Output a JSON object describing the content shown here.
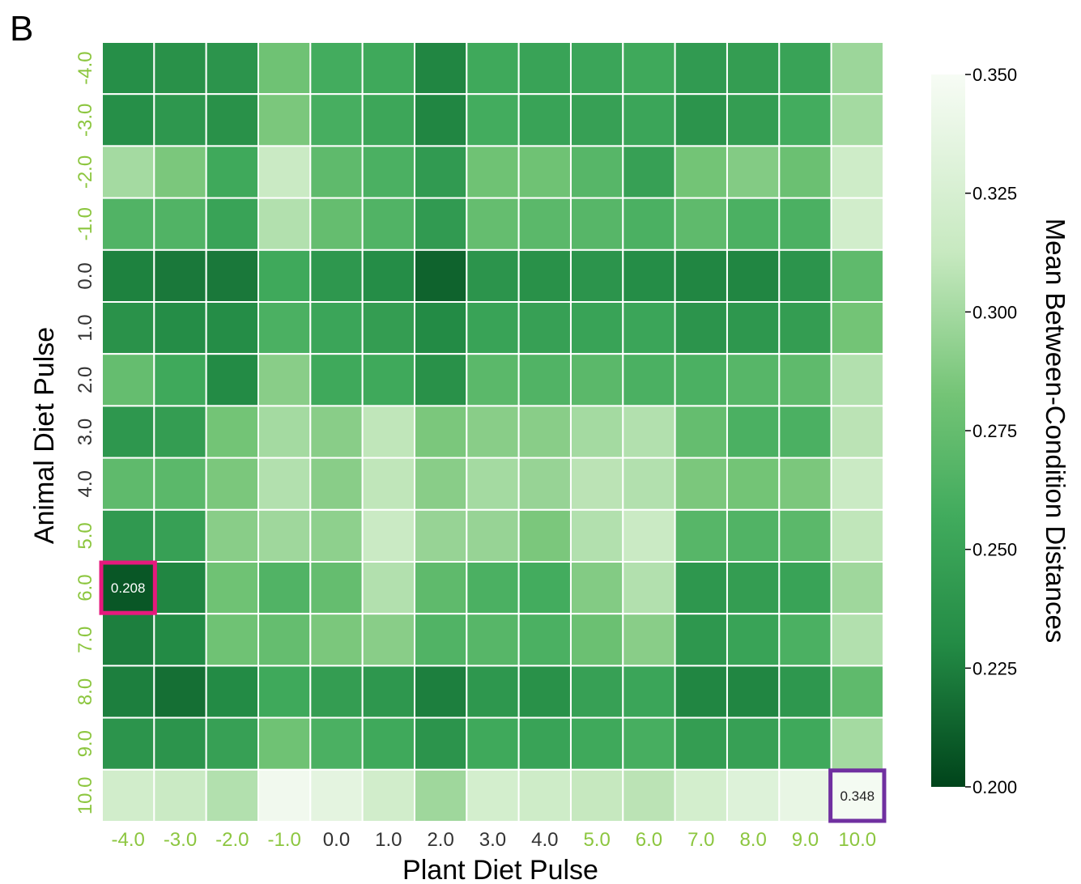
{
  "panel_label": "B",
  "colors": {
    "tick_green": "#8cc63f",
    "tick_dark": "#333333",
    "pink_box": "#e6197d",
    "purple_box": "#7030a0"
  },
  "chart_data": {
    "type": "heatmap",
    "title": "",
    "xlabel": "Plant Diet Pulse",
    "ylabel": "Animal Diet Pulse",
    "x_categories": [
      "-4.0",
      "-3.0",
      "-2.0",
      "-1.0",
      "0.0",
      "1.0",
      "2.0",
      "3.0",
      "4.0",
      "5.0",
      "6.0",
      "7.0",
      "8.0",
      "9.0",
      "10.0"
    ],
    "y_categories": [
      "-4.0",
      "-3.0",
      "-2.0",
      "-1.0",
      "0.0",
      "1.0",
      "2.0",
      "3.0",
      "4.0",
      "5.0",
      "6.0",
      "7.0",
      "8.0",
      "9.0",
      "10.0"
    ],
    "x_tick_colors": [
      "green",
      "green",
      "green",
      "green",
      "dark",
      "dark",
      "dark",
      "dark",
      "dark",
      "green",
      "green",
      "green",
      "green",
      "green",
      "green"
    ],
    "y_tick_colors": [
      "green",
      "green",
      "green",
      "green",
      "dark",
      "dark",
      "dark",
      "dark",
      "dark",
      "green",
      "green",
      "green",
      "green",
      "green",
      "green"
    ],
    "values": [
      [
        0.233,
        0.235,
        0.238,
        0.28,
        0.258,
        0.255,
        0.228,
        0.255,
        0.25,
        0.252,
        0.255,
        0.243,
        0.245,
        0.25,
        0.297
      ],
      [
        0.233,
        0.24,
        0.235,
        0.285,
        0.26,
        0.253,
        0.228,
        0.258,
        0.25,
        0.248,
        0.252,
        0.238,
        0.245,
        0.258,
        0.3
      ],
      [
        0.3,
        0.285,
        0.255,
        0.315,
        0.272,
        0.262,
        0.243,
        0.28,
        0.28,
        0.268,
        0.248,
        0.282,
        0.288,
        0.278,
        0.318
      ],
      [
        0.265,
        0.265,
        0.25,
        0.305,
        0.275,
        0.265,
        0.243,
        0.275,
        0.27,
        0.268,
        0.262,
        0.272,
        0.262,
        0.262,
        0.32
      ],
      [
        0.226,
        0.222,
        0.222,
        0.255,
        0.24,
        0.232,
        0.213,
        0.238,
        0.235,
        0.238,
        0.232,
        0.228,
        0.228,
        0.238,
        0.272
      ],
      [
        0.236,
        0.232,
        0.232,
        0.262,
        0.252,
        0.245,
        0.23,
        0.25,
        0.248,
        0.25,
        0.252,
        0.238,
        0.24,
        0.245,
        0.282
      ],
      [
        0.275,
        0.255,
        0.23,
        0.29,
        0.255,
        0.255,
        0.235,
        0.27,
        0.265,
        0.27,
        0.262,
        0.262,
        0.268,
        0.272,
        0.305
      ],
      [
        0.24,
        0.245,
        0.282,
        0.3,
        0.29,
        0.31,
        0.285,
        0.29,
        0.29,
        0.3,
        0.305,
        0.275,
        0.262,
        0.262,
        0.308
      ],
      [
        0.272,
        0.27,
        0.285,
        0.305,
        0.29,
        0.31,
        0.29,
        0.3,
        0.295,
        0.308,
        0.305,
        0.285,
        0.282,
        0.285,
        0.315
      ],
      [
        0.242,
        0.248,
        0.29,
        0.298,
        0.292,
        0.315,
        0.295,
        0.295,
        0.285,
        0.305,
        0.315,
        0.268,
        0.265,
        0.27,
        0.31
      ],
      [
        0.208,
        0.228,
        0.28,
        0.265,
        0.275,
        0.305,
        0.272,
        0.262,
        0.258,
        0.288,
        0.305,
        0.24,
        0.245,
        0.25,
        0.298
      ],
      [
        0.225,
        0.23,
        0.28,
        0.275,
        0.285,
        0.29,
        0.265,
        0.268,
        0.262,
        0.278,
        0.29,
        0.24,
        0.25,
        0.262,
        0.305
      ],
      [
        0.225,
        0.218,
        0.23,
        0.255,
        0.245,
        0.24,
        0.225,
        0.24,
        0.235,
        0.248,
        0.252,
        0.228,
        0.228,
        0.24,
        0.272
      ],
      [
        0.238,
        0.238,
        0.248,
        0.28,
        0.262,
        0.255,
        0.238,
        0.255,
        0.25,
        0.255,
        0.26,
        0.245,
        0.248,
        0.255,
        0.3
      ],
      [
        0.32,
        0.315,
        0.305,
        0.345,
        0.335,
        0.32,
        0.298,
        0.322,
        0.318,
        0.312,
        0.308,
        0.322,
        0.33,
        0.338,
        0.348
      ]
    ],
    "annotations": [
      {
        "row": 10,
        "col": 0,
        "text": "0.208",
        "box": "pink"
      },
      {
        "row": 14,
        "col": 14,
        "text": "0.348",
        "box": "purple"
      }
    ],
    "colorbar": {
      "label": "Mean Between-Condition Distances",
      "min": 0.2,
      "max": 0.35,
      "ticks": [
        "0.350",
        "0.325",
        "0.300",
        "0.275",
        "0.250",
        "0.225",
        "0.200"
      ],
      "colormap": "Greens_r"
    },
    "grid": true
  }
}
